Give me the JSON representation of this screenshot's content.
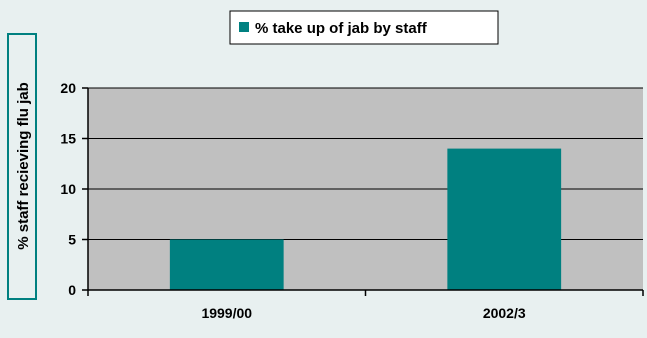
{
  "chart_data": {
    "type": "bar",
    "categories": [
      "1999/00",
      "2002/3"
    ],
    "series": [
      {
        "name": "% take up of jab by staff",
        "values": [
          5,
          14
        ],
        "color": "#008080"
      }
    ],
    "title": "",
    "xlabel": "",
    "ylabel": "% staff recieving flu jab",
    "ylim": [
      0,
      20
    ],
    "yticks": [
      0,
      5,
      10,
      15,
      20
    ],
    "grid": true,
    "legend": "top-center",
    "colors": {
      "page_background": "#e8f0f0",
      "plot_background": "#c0c0c0",
      "bar": "#008080",
      "ylabel_border": "#008080"
    }
  }
}
